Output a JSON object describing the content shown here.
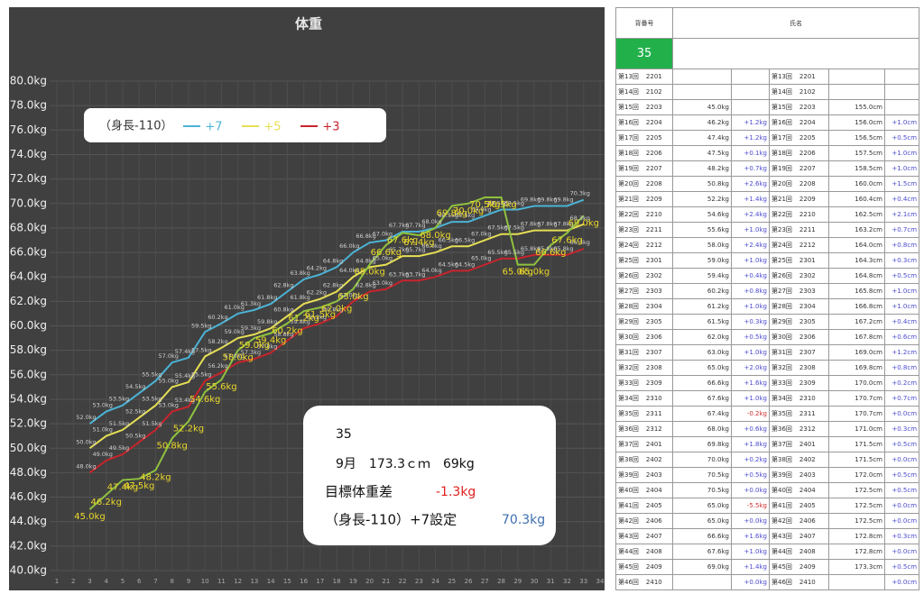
{
  "chart_data": {
    "type": "line",
    "title": "体重",
    "legend_title": "（身長-110）",
    "x": [
      3,
      4,
      5,
      6,
      7,
      8,
      9,
      10,
      11,
      12,
      13,
      14,
      15,
      16,
      17,
      18,
      19,
      20,
      21,
      22,
      23,
      24,
      25,
      26,
      27,
      28,
      29,
      30,
      31,
      32,
      33
    ],
    "xlim": [
      1,
      34
    ],
    "xticks": [
      1,
      2,
      3,
      4,
      5,
      6,
      7,
      8,
      9,
      10,
      11,
      12,
      13,
      14,
      15,
      16,
      17,
      18,
      19,
      20,
      21,
      22,
      23,
      24,
      25,
      26,
      27,
      28,
      29,
      30,
      31,
      32,
      33,
      34
    ],
    "ylim": [
      40,
      80
    ],
    "yticks": [
      {
        "value": 40,
        "label": "40.0kg"
      },
      {
        "value": 42,
        "label": "42.0kg"
      },
      {
        "value": 44,
        "label": "44.0kg"
      },
      {
        "value": 46,
        "label": "46.0kg"
      },
      {
        "value": 48,
        "label": "48.0kg"
      },
      {
        "value": 50,
        "label": "50.0kg"
      },
      {
        "value": 52,
        "label": "52.0kg"
      },
      {
        "value": 54,
        "label": "54.0kg"
      },
      {
        "value": 56,
        "label": "56.0kg"
      },
      {
        "value": 58,
        "label": "58.0kg"
      },
      {
        "value": 60,
        "label": "60.0kg"
      },
      {
        "value": 62,
        "label": "62.0kg"
      },
      {
        "value": 64,
        "label": "64.0kg"
      },
      {
        "value": 66,
        "label": "66.0kg"
      },
      {
        "value": 68,
        "label": "68.0kg"
      },
      {
        "value": 70,
        "label": "70.0kg"
      },
      {
        "value": 72,
        "label": "72.0kg"
      },
      {
        "value": 74,
        "label": "74.0kg"
      },
      {
        "value": 76,
        "label": "76.0kg"
      },
      {
        "value": 78,
        "label": "78.0kg"
      },
      {
        "value": 80,
        "label": "80.0kg"
      }
    ],
    "grid": true,
    "series": [
      {
        "name": "+7",
        "color": "#4bb3d6",
        "values": [
          52.0,
          53.0,
          53.5,
          54.5,
          55.5,
          57.0,
          57.4,
          59.5,
          60.2,
          61.0,
          61.3,
          61.8,
          62.8,
          63.8,
          64.2,
          64.8,
          66.0,
          66.8,
          67.0,
          67.7,
          67.7,
          68.0,
          68.5,
          68.5,
          69.0,
          69.5,
          69.5,
          69.8,
          69.8,
          69.8,
          70.3
        ],
        "value_labels": [
          "52.0kg",
          "53.0kg",
          "53.5kg",
          "54.5kg",
          "55.5kg",
          "57.0kg",
          "57.4kg",
          "59.5kg",
          "60.2kg",
          "61.0kg",
          "61.3kg",
          "61.8kg",
          "62.8kg",
          "63.8kg",
          "64.2kg",
          "64.8kg",
          "66.0kg",
          "66.8kg",
          "67.0kg",
          "67.7kg",
          "67.7kg",
          "68.0kg",
          "68.5kg",
          "68.5kg",
          "69.0kg",
          "69.5kg",
          "69.5kg",
          "69.8kg",
          "69.8kg",
          "69.8kg",
          "70.3kg"
        ]
      },
      {
        "name": "+5",
        "color": "#e6df55",
        "values": [
          50.0,
          51.0,
          51.5,
          52.5,
          53.5,
          55.0,
          55.4,
          57.5,
          58.2,
          59.0,
          59.3,
          59.8,
          60.8,
          61.8,
          62.2,
          62.8,
          64.0,
          64.8,
          65.0,
          65.7,
          65.7,
          66.0,
          66.5,
          66.5,
          67.0,
          67.5,
          67.5,
          67.8,
          67.8,
          67.8,
          68.3
        ],
        "value_labels": [
          "50.0kg",
          "51.0kg",
          "51.5kg",
          "52.5kg",
          "53.5kg",
          "55.0kg",
          "55.4kg",
          "57.5kg",
          "58.2kg",
          "59.0kg",
          "59.3kg",
          "59.8kg",
          "60.8kg",
          "61.8kg",
          "62.2kg",
          "62.8kg",
          "64.0kg",
          "64.8kg",
          "65.0kg",
          "65.7kg",
          "65.7kg",
          "66.0kg",
          "66.5kg",
          "66.5kg",
          "67.0kg",
          "67.5kg",
          "67.5kg",
          "67.8kg",
          "67.8kg",
          "67.8kg",
          "68.3kg"
        ]
      },
      {
        "name": "+3",
        "color": "#c8242c",
        "values": [
          48.0,
          49.0,
          49.5,
          50.5,
          51.5,
          53.0,
          53.4,
          55.5,
          56.2,
          57.0,
          57.3,
          57.8,
          58.8,
          59.8,
          60.2,
          60.8,
          62.0,
          62.8,
          63.0,
          63.7,
          63.7,
          64.0,
          64.5,
          64.5,
          65.0,
          65.5,
          65.5,
          65.8,
          65.8,
          65.8,
          66.3
        ],
        "value_labels": [
          "48.0kg",
          "49.0kg",
          "49.5kg",
          "50.5kg",
          "51.5kg",
          "53.0kg",
          "53.4kg",
          "55.5kg",
          "56.2kg",
          "57.0kg",
          "57.3kg",
          "57.8kg",
          "58.8kg",
          "59.8kg",
          "60.2kg",
          "60.8kg",
          "62.0kg",
          "62.8kg",
          "63.0kg",
          "63.7kg",
          "63.7kg",
          "64.0kg",
          "64.5kg",
          "64.5kg",
          "65.0kg",
          "65.5kg",
          "65.5kg",
          "65.8kg",
          "65.8kg",
          "65.8kg",
          "66.3kg"
        ]
      },
      {
        "color": "#8fc23f",
        "values": [
          45.0,
          46.2,
          47.4,
          47.5,
          48.2,
          50.8,
          52.2,
          54.6,
          55.6,
          58.0,
          59.0,
          59.4,
          60.2,
          61.2,
          61.5,
          62.0,
          63.0,
          65.0,
          66.6,
          67.6,
          67.4,
          68.0,
          69.8,
          70.0,
          70.5,
          70.5,
          65.0,
          65.0,
          66.6,
          67.6,
          69.0
        ],
        "value_labels": [
          "45.0kg",
          "46.2kg",
          "47.4kg",
          "47.5kg",
          "48.2kg",
          "50.8kg",
          "52.2kg",
          "54.6kg",
          "55.6kg",
          "58.0kg",
          "59.0kg",
          "59.4kg",
          "60.2kg",
          "61.2kg",
          "61.5kg",
          "62.0kg",
          "63.0kg",
          "65.0kg",
          "66.6kg",
          "67.6kg",
          "67.4kg",
          "68.0kg",
          "69.8kg",
          "70.0kg",
          "70.5kg",
          "70.5kg",
          "65.0kg",
          "65.0kg",
          "66.6kg",
          "67.6kg",
          "69.0kg"
        ]
      }
    ]
  },
  "info": {
    "number": "35",
    "measure": "9月　173.3ｃｍ　69kg",
    "diff_label": "目標体重差",
    "diff": "-1.3kg",
    "setting_label": "（身長-110）+7設定",
    "setting": "70.3kg"
  },
  "table": {
    "header": {
      "number_label": "背番号",
      "name_label": "氏名",
      "number": "35"
    },
    "rows": [
      [
        "第13回",
        "2201",
        null,
        null,
        null,
        null
      ],
      [
        "第14回",
        "2102",
        null,
        null,
        null,
        null
      ],
      [
        "第15回",
        "2203",
        "45.0kg",
        null,
        "155.0cm",
        null
      ],
      [
        "第16回",
        "2204",
        "46.2kg",
        "+1.2kg",
        "156.0cm",
        "+1.0cm"
      ],
      [
        "第17回",
        "2205",
        "47.4kg",
        "+1.2kg",
        "156.5cm",
        "+0.5cm"
      ],
      [
        "第18回",
        "2206",
        "47.5kg",
        "+0.1kg",
        "157.5cm",
        "+1.0cm"
      ],
      [
        "第19回",
        "2207",
        "48.2kg",
        "+0.7kg",
        "158.5cm",
        "+1.0cm"
      ],
      [
        "第20回",
        "2208",
        "50.8kg",
        "+2.6kg",
        "160.0cm",
        "+1.5cm"
      ],
      [
        "第21回",
        "2209",
        "52.2kg",
        "+1.4kg",
        "160.4cm",
        "+0.4cm"
      ],
      [
        "第22回",
        "2210",
        "54.6kg",
        "+2.4kg",
        "162.5cm",
        "+2.1cm"
      ],
      [
        "第23回",
        "2211",
        "55.6kg",
        "+1.0kg",
        "163.2cm",
        "+0.7cm"
      ],
      [
        "第24回",
        "2212",
        "58.0kg",
        "+2.4kg",
        "164.0cm",
        "+0.8cm"
      ],
      [
        "第25回",
        "2301",
        "59.0kg",
        "+1.0kg",
        "164.3cm",
        "+0.3cm"
      ],
      [
        "第26回",
        "2302",
        "59.4kg",
        "+0.4kg",
        "164.8cm",
        "+0.5cm"
      ],
      [
        "第27回",
        "2303",
        "60.2kg",
        "+0.8kg",
        "165.8cm",
        "+1.0cm"
      ],
      [
        "第28回",
        "2304",
        "61.2kg",
        "+1.0kg",
        "166.8cm",
        "+1.0cm"
      ],
      [
        "第29回",
        "2305",
        "61.5kg",
        "+0.3kg",
        "167.2cm",
        "+0.4cm"
      ],
      [
        "第30回",
        "2306",
        "62.0kg",
        "+0.5kg",
        "167.8cm",
        "+0.6cm"
      ],
      [
        "第31回",
        "2307",
        "63.0kg",
        "+1.0kg",
        "169.0cm",
        "+1.2cm"
      ],
      [
        "第32回",
        "2308",
        "65.0kg",
        "+2.0kg",
        "169.8cm",
        "+0.8cm"
      ],
      [
        "第33回",
        "2309",
        "66.6kg",
        "+1.6kg",
        "170.0cm",
        "+0.2cm"
      ],
      [
        "第34回",
        "2310",
        "67.6kg",
        "+1.0kg",
        "170.7cm",
        "+0.7cm"
      ],
      [
        "第35回",
        "2311",
        "67.4kg",
        "-0.2kg",
        "170.7cm",
        "+0.0cm"
      ],
      [
        "第36回",
        "2312",
        "68.0kg",
        "+0.6kg",
        "171.0cm",
        "+0.3cm"
      ],
      [
        "第37回",
        "2401",
        "69.8kg",
        "+1.8kg",
        "171.5cm",
        "+0.5cm"
      ],
      [
        "第38回",
        "2402",
        "70.0kg",
        "+0.2kg",
        "171.5cm",
        "+0.0cm"
      ],
      [
        "第39回",
        "2403",
        "70.5kg",
        "+0.5kg",
        "172.0cm",
        "+0.5cm"
      ],
      [
        "第40回",
        "2404",
        "70.5kg",
        "+0.0kg",
        "172.5cm",
        "+0.5cm"
      ],
      [
        "第41回",
        "2405",
        "65.0kg",
        "-5.5kg",
        "172.5cm",
        "+0.0cm"
      ],
      [
        "第42回",
        "2406",
        "65.0kg",
        "+0.0kg",
        "172.5cm",
        "+0.0cm"
      ],
      [
        "第43回",
        "2407",
        "66.6kg",
        "+1.6kg",
        "172.8cm",
        "+0.3cm"
      ],
      [
        "第44回",
        "2408",
        "67.6kg",
        "+1.0kg",
        "172.8cm",
        "+0.0cm"
      ],
      [
        "第45回",
        "2409",
        "69.0kg",
        "+1.4kg",
        "173.3cm",
        "+0.5cm"
      ],
      [
        "第46回",
        "2410",
        null,
        "+0.0kg",
        null,
        "+0.0cm"
      ]
    ]
  }
}
